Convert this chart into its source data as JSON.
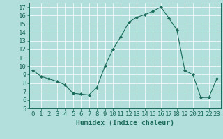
{
  "x": [
    0,
    1,
    2,
    3,
    4,
    5,
    6,
    7,
    8,
    9,
    10,
    11,
    12,
    13,
    14,
    15,
    16,
    17,
    18,
    19,
    20,
    21,
    22,
    23
  ],
  "y": [
    9.5,
    8.8,
    8.5,
    8.2,
    7.8,
    6.8,
    6.7,
    6.6,
    7.5,
    10.0,
    12.0,
    13.5,
    15.2,
    15.8,
    16.1,
    16.5,
    17.0,
    15.7,
    14.3,
    9.5,
    9.0,
    6.3,
    6.3,
    8.5
  ],
  "line_color": "#1a6b5a",
  "marker": "D",
  "marker_size": 2.0,
  "bg_color": "#b2dfdb",
  "grid_color": "#ffffff",
  "xlabel": "Humidex (Indice chaleur)",
  "xlim": [
    -0.5,
    23.5
  ],
  "ylim": [
    5,
    17.5
  ],
  "yticks": [
    5,
    6,
    7,
    8,
    9,
    10,
    11,
    12,
    13,
    14,
    15,
    16,
    17
  ],
  "xticks": [
    0,
    1,
    2,
    3,
    4,
    5,
    6,
    7,
    8,
    9,
    10,
    11,
    12,
    13,
    14,
    15,
    16,
    17,
    18,
    19,
    20,
    21,
    22,
    23
  ],
  "tick_color": "#1a6b5a",
  "label_color": "#1a6b5a",
  "xlabel_fontsize": 7,
  "tick_fontsize": 6.5
}
